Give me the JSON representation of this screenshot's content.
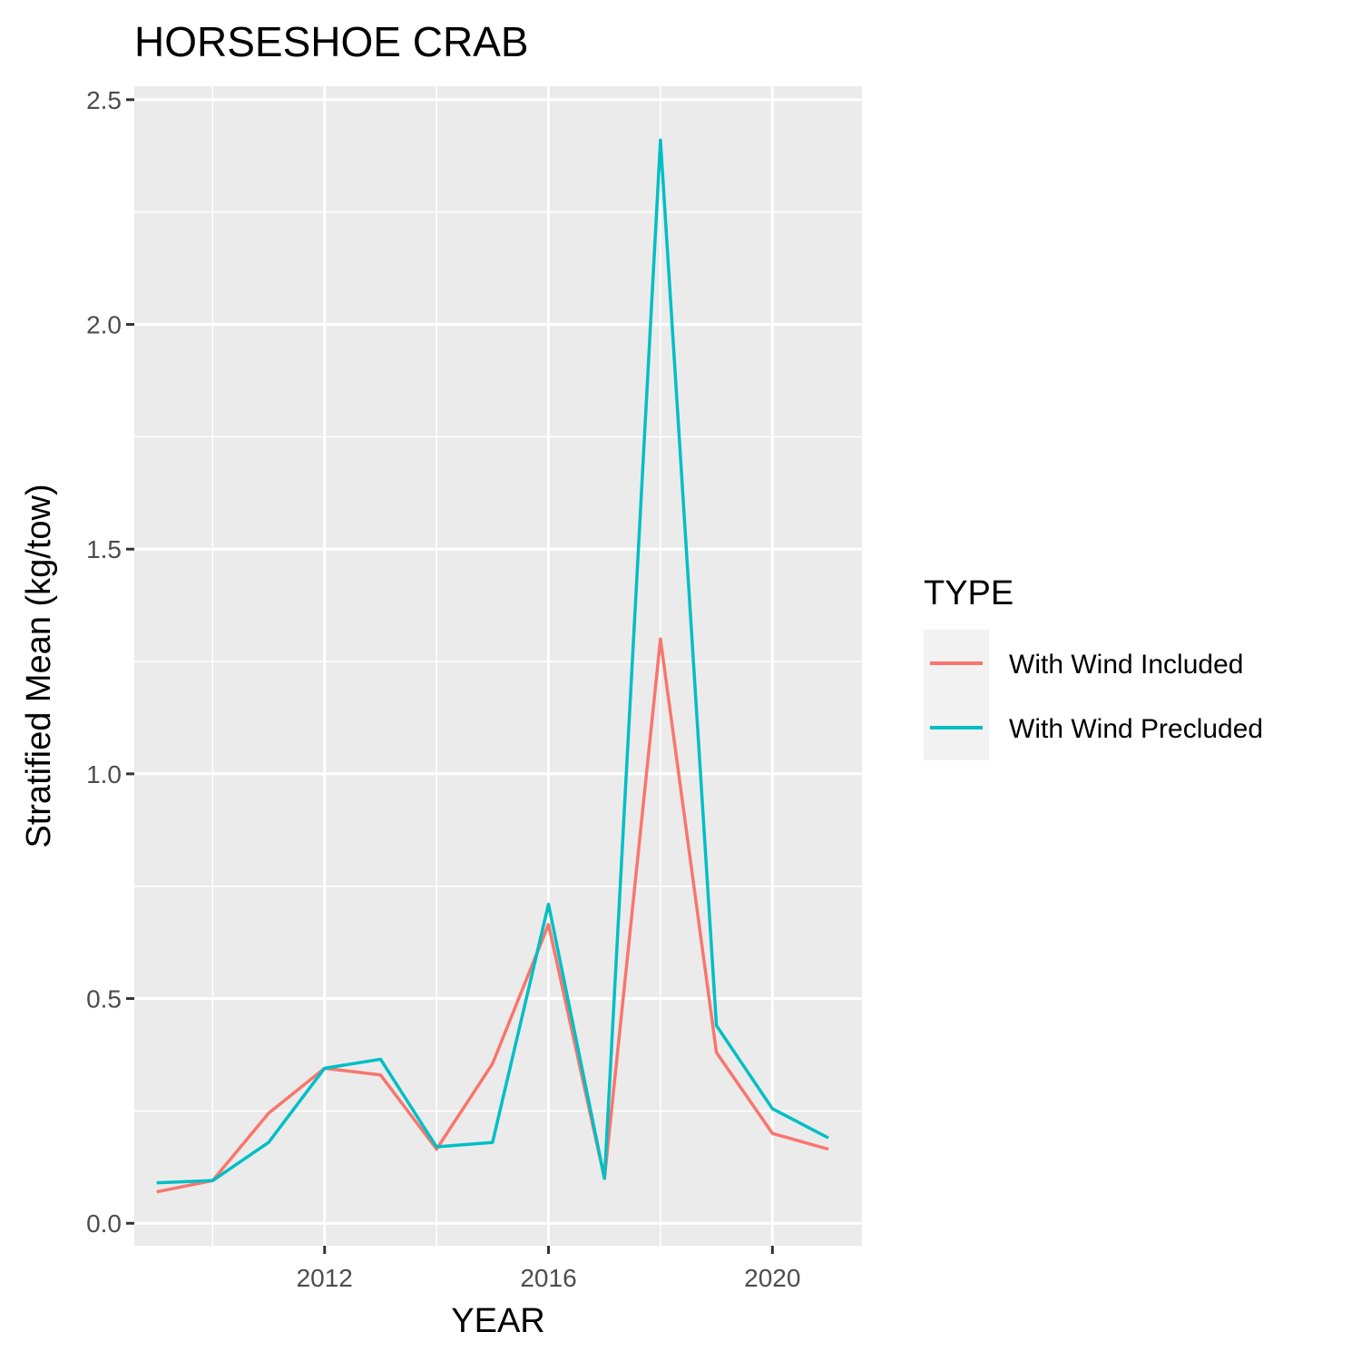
{
  "chart_data": {
    "type": "line",
    "title": "HORSESHOE CRAB",
    "xlabel": "YEAR",
    "ylabel": "Stratified Mean (kg/tow)",
    "x": [
      2009,
      2010,
      2011,
      2012,
      2013,
      2014,
      2015,
      2016,
      2017,
      2018,
      2019,
      2020,
      2021
    ],
    "xlim": [
      2008.6,
      2021.6
    ],
    "ylim": [
      -0.05,
      2.53
    ],
    "x_ticks": [
      2012,
      2016,
      2020
    ],
    "x_tick_labels": [
      "2012",
      "2016",
      "2020"
    ],
    "y_ticks": [
      0,
      0.5,
      1.0,
      1.5,
      2.0,
      2.5
    ],
    "y_tick_labels": [
      "0.0",
      "0.5",
      "1.0",
      "1.5",
      "2.0",
      "2.5"
    ],
    "grid": true,
    "legend": {
      "title": "TYPE",
      "placement": "right"
    },
    "series": [
      {
        "name": "With Wind Included",
        "color": "#F8766D",
        "values": [
          0.07,
          0.095,
          0.245,
          0.345,
          0.33,
          0.165,
          0.355,
          0.665,
          0.1,
          1.3,
          0.38,
          0.2,
          0.165
        ]
      },
      {
        "name": "With Wind Precluded",
        "color": "#00BFC4",
        "values": [
          0.09,
          0.095,
          0.18,
          0.345,
          0.365,
          0.17,
          0.18,
          0.71,
          0.1,
          2.41,
          0.44,
          0.255,
          0.19
        ]
      }
    ]
  }
}
